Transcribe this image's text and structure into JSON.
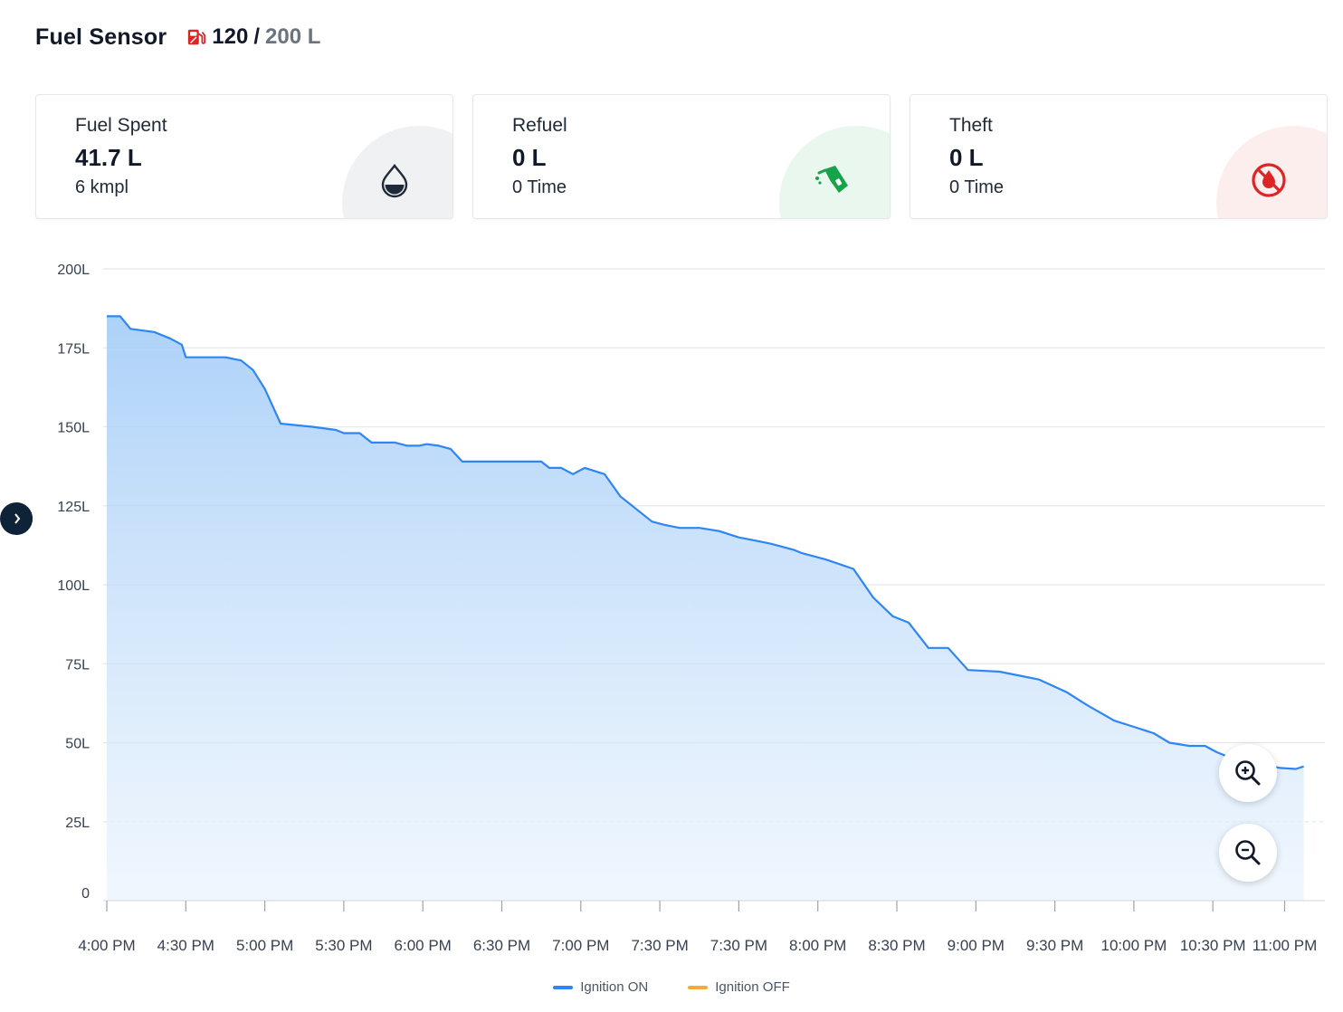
{
  "header": {
    "title": "Fuel Sensor",
    "tank_current": "120",
    "tank_separator": "/",
    "tank_capacity": "200 L",
    "tank_icon": "fuel-pump-icon",
    "tank_icon_color": "#dc2626"
  },
  "cards": [
    {
      "label": "Fuel Spent",
      "value": "41.7 L",
      "sub": "6 kmpl",
      "icon": "fuel-drop-icon",
      "tint": "#f0f1f3",
      "icon_color": "#1f2937"
    },
    {
      "label": "Refuel",
      "value": "0 L",
      "sub": "0 Time",
      "icon": "fuel-nozzle-icon",
      "tint": "#eaf7ef",
      "icon_color": "#16a34a"
    },
    {
      "label": "Theft",
      "value": "0 L",
      "sub": "0 Time",
      "icon": "no-fuel-icon",
      "tint": "#fdeeee",
      "icon_color": "#dc2626"
    }
  ],
  "chart_data": {
    "type": "area",
    "title": "",
    "xlabel": "",
    "ylabel": "",
    "ylim": [
      0,
      200
    ],
    "y_ticks": [
      0,
      25,
      50,
      75,
      100,
      125,
      150,
      175,
      200
    ],
    "y_tick_labels": [
      "0",
      "25L",
      "50L",
      "75L",
      "100L",
      "125L",
      "150L",
      "175L",
      "200L"
    ],
    "x_tick_labels": [
      "4:00 PM",
      "4:30 PM",
      "5:00 PM",
      "5:30 PM",
      "6:00 PM",
      "6:30 PM",
      "7:00 PM",
      "7:30 PM",
      "7:30 PM",
      "8:00 PM",
      "8:30 PM",
      "9:00 PM",
      "9:30 PM",
      "10:00 PM",
      "10:30 PM",
      "11:00 PM"
    ],
    "grid": true,
    "legend_position": "bottom",
    "series": [
      {
        "name": "Ignition ON",
        "color": "#2e86f5",
        "x": [
          0,
          0.17,
          0.3,
          0.6,
          0.8,
          0.95,
          1.0,
          1.17,
          1.3,
          1.5,
          1.7,
          1.85,
          2.0,
          2.2,
          2.6,
          2.9,
          3.0,
          3.2,
          3.35,
          3.5,
          3.65,
          3.8,
          3.95,
          4.05,
          4.2,
          4.35,
          4.5,
          4.6,
          4.85,
          5.15,
          5.5,
          5.6,
          5.75,
          5.9,
          6.05,
          6.3,
          6.5,
          6.9,
          7.05,
          7.25,
          7.5,
          7.75,
          8.0,
          8.2,
          8.4,
          8.55,
          8.7,
          8.8,
          8.95,
          9.1,
          9.45,
          9.7,
          9.95,
          10.15,
          10.4,
          10.65,
          10.9,
          11.3,
          11.5,
          11.8,
          12.15,
          12.4,
          12.75,
          13.0,
          13.25,
          13.45,
          13.7,
          13.9,
          14.05,
          14.25,
          14.45,
          14.65,
          14.85,
          15.05,
          15.15
        ],
        "y": [
          185,
          185,
          181,
          180,
          178,
          176,
          172,
          172,
          172,
          172,
          171,
          168,
          162,
          151,
          150,
          149,
          148,
          148,
          145,
          145,
          145,
          144,
          144,
          144.5,
          144,
          143,
          139,
          139,
          139,
          139,
          139,
          137,
          137,
          135,
          137,
          135,
          128,
          120,
          119,
          118,
          118,
          117,
          115,
          114,
          113,
          112,
          111,
          110,
          109,
          108,
          105,
          96,
          90,
          88,
          80,
          80,
          73,
          72.5,
          71.5,
          70,
          66,
          62,
          57,
          55,
          53,
          50,
          49,
          49,
          47,
          45,
          44,
          43,
          42,
          41.7,
          42.5
        ]
      },
      {
        "name": "Ignition OFF",
        "color": "#f6a93b",
        "x": [],
        "y": []
      }
    ]
  },
  "controls": {
    "zoom_in_icon": "zoom-in-icon",
    "zoom_out_icon": "zoom-out-icon",
    "side_toggle_icon": "chevron-right-icon"
  }
}
